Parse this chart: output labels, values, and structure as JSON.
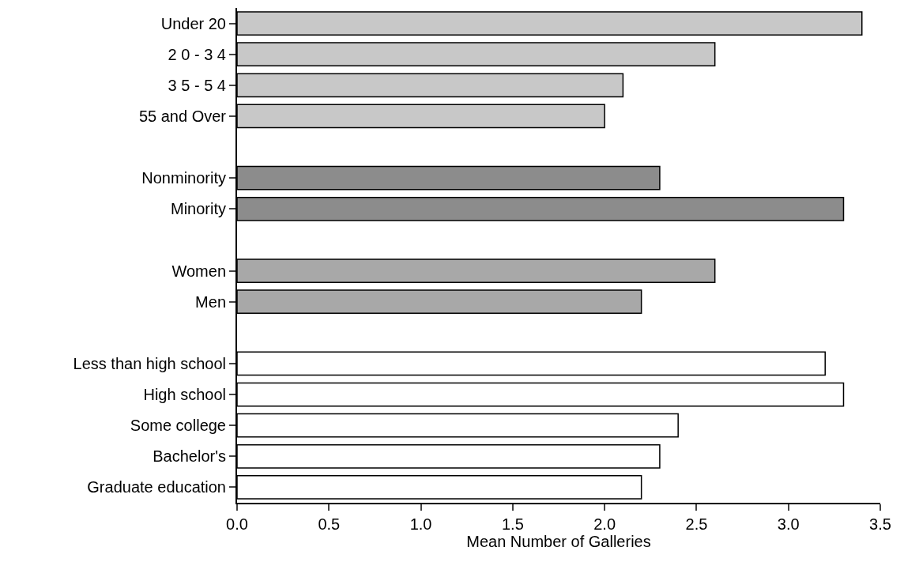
{
  "chart_data": {
    "type": "bar",
    "orientation": "horizontal",
    "xlabel": "Mean Number of Galleries",
    "categories": [
      "Under 20",
      "2 0 - 3 4",
      "3 5 - 5 4",
      "55 and Over",
      null,
      "Nonminority",
      "Minority",
      null,
      "Women",
      "Men",
      null,
      "Less than high school",
      "High school",
      "Some college",
      "Bachelor's",
      "Graduate education"
    ],
    "values": [
      3.4,
      2.6,
      2.1,
      2.0,
      null,
      2.3,
      3.3,
      null,
      2.6,
      2.2,
      null,
      3.2,
      3.3,
      2.4,
      2.3,
      2.2
    ],
    "colors": [
      "#c8c8c8",
      "#c8c8c8",
      "#c8c8c8",
      "#c8c8c8",
      "#ffffff",
      "#8c8c8c",
      "#8c8c8c",
      "#ffffff",
      "#a8a8a8",
      "#a8a8a8",
      "#ffffff",
      "#ffffff",
      "#ffffff",
      "#ffffff",
      "#ffffff",
      "#ffffff"
    ],
    "xlim": [
      0,
      3.5
    ],
    "xticks": [
      {
        "value": 0,
        "label": "0.0"
      },
      0.5,
      {
        "value": 1,
        "label": "1.0"
      },
      1.5,
      {
        "value": 2,
        "label": "2.0"
      },
      2.5,
      {
        "value": 3,
        "label": "3.0"
      },
      3.5
    ],
    "grid": false,
    "legend": false
  }
}
